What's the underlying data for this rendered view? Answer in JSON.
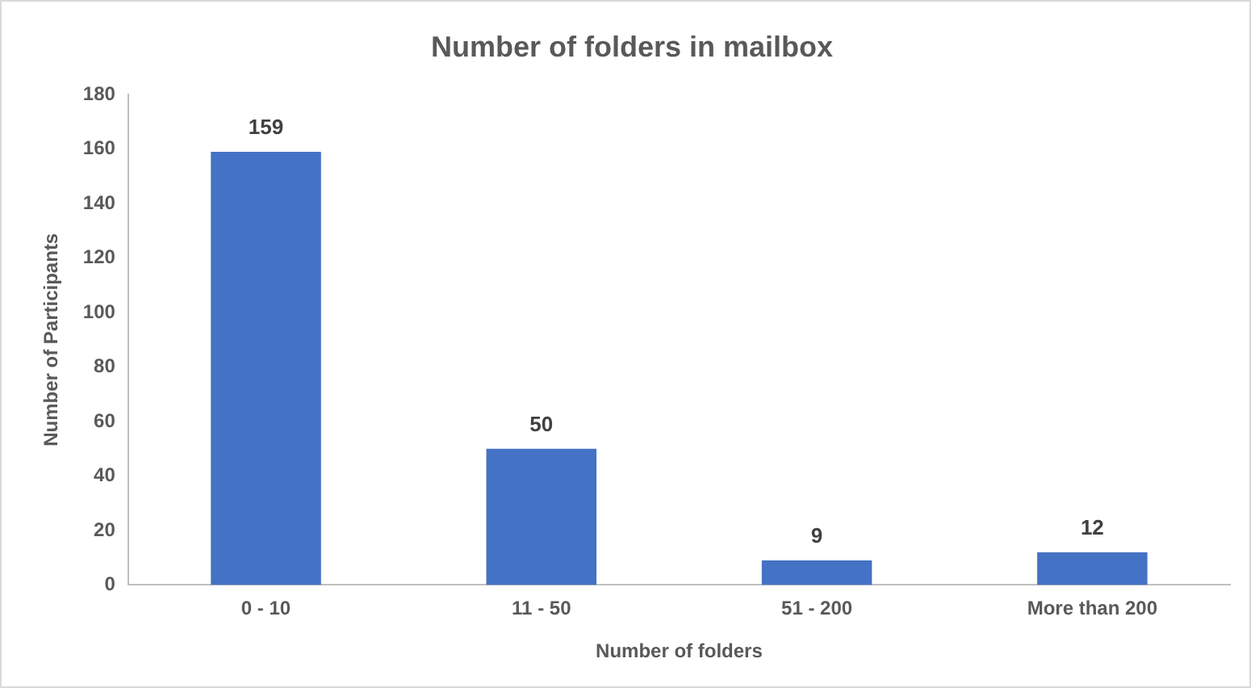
{
  "chart_data": {
    "type": "bar",
    "title": "Number of folders in mailbox",
    "xlabel": "Number of folders",
    "ylabel": "Number of Participants",
    "categories": [
      "0 - 10",
      "11 - 50",
      "51 - 200",
      "More than 200"
    ],
    "values": [
      159,
      50,
      9,
      12
    ],
    "color": "#4472c4",
    "ylim": [
      0,
      180
    ],
    "yticks": [
      0,
      20,
      40,
      60,
      80,
      100,
      120,
      140,
      160,
      180
    ],
    "grid": false,
    "legend": false,
    "data_labels": true
  }
}
